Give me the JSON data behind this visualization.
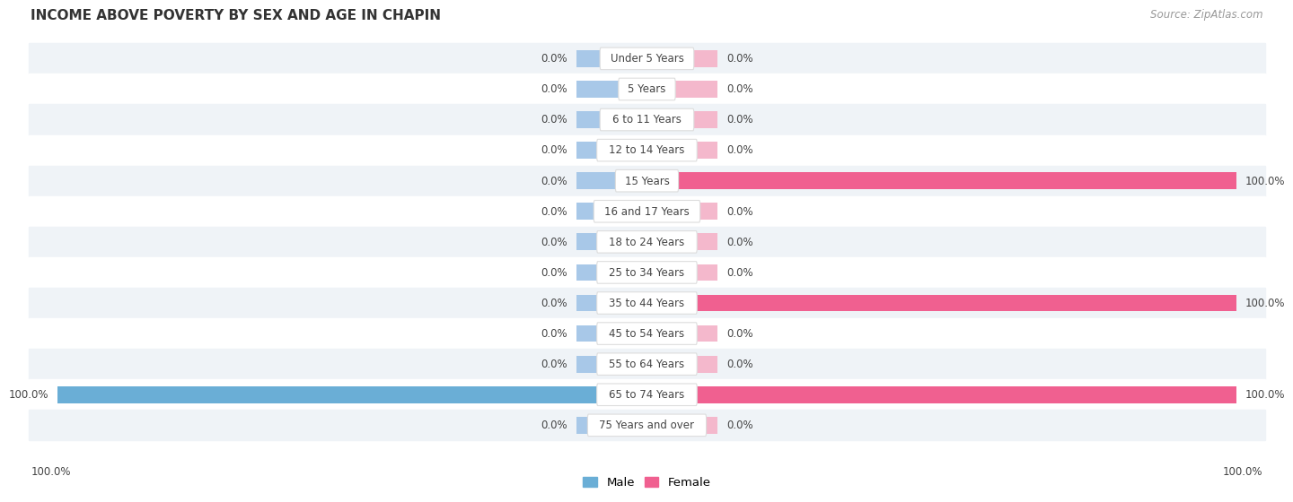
{
  "title": "INCOME ABOVE POVERTY BY SEX AND AGE IN CHAPIN",
  "source": "Source: ZipAtlas.com",
  "categories": [
    "Under 5 Years",
    "5 Years",
    "6 to 11 Years",
    "12 to 14 Years",
    "15 Years",
    "16 and 17 Years",
    "18 to 24 Years",
    "25 to 34 Years",
    "35 to 44 Years",
    "45 to 54 Years",
    "55 to 64 Years",
    "65 to 74 Years",
    "75 Years and over"
  ],
  "male_values": [
    0.0,
    0.0,
    0.0,
    0.0,
    0.0,
    0.0,
    0.0,
    0.0,
    0.0,
    0.0,
    0.0,
    100.0,
    0.0
  ],
  "female_values": [
    0.0,
    0.0,
    0.0,
    0.0,
    100.0,
    0.0,
    0.0,
    0.0,
    100.0,
    0.0,
    0.0,
    100.0,
    0.0
  ],
  "male_stub_color": "#a8c8e8",
  "female_stub_color": "#f4b8cc",
  "male_bar_color": "#6aaed6",
  "female_bar_color": "#f06090",
  "row_bg_alt": "#eff3f7",
  "row_bg_main": "#ffffff",
  "label_color": "#444444",
  "value_color": "#444444",
  "title_color": "#333333",
  "source_color": "#999999",
  "bg_color": "#ffffff",
  "stub_extent": 12,
  "bar_height": 0.55,
  "xlim_abs": 105
}
